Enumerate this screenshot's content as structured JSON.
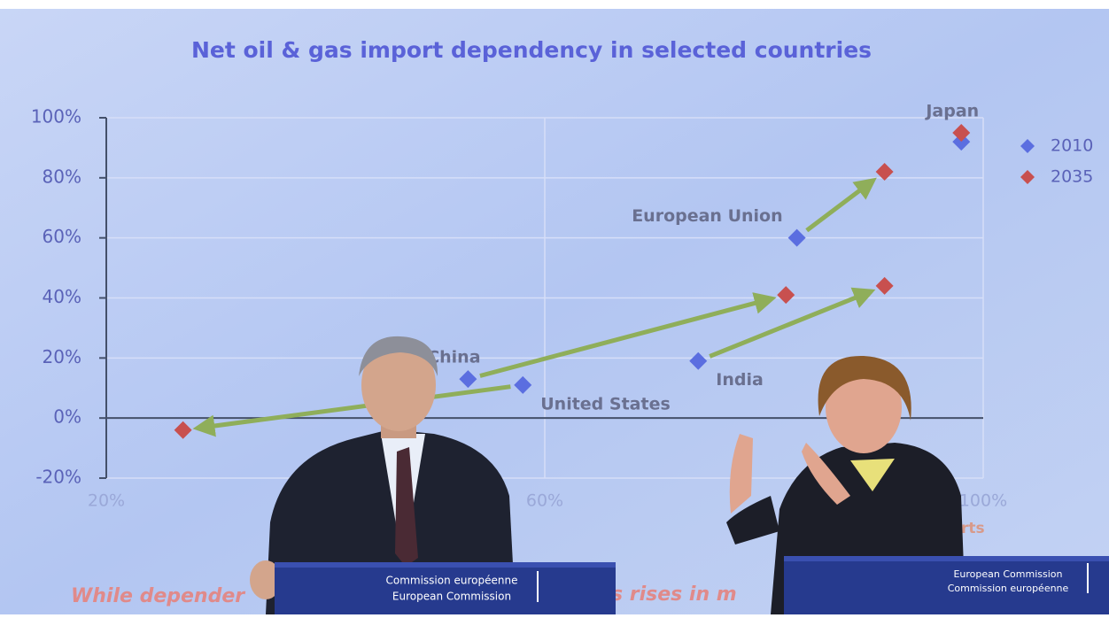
{
  "chart_data": {
    "type": "scatter",
    "title": "Net oil & gas import dependency in selected countries",
    "point_labels": [
      "Japan",
      "European Union",
      "China",
      "United States",
      "India"
    ],
    "series": [
      {
        "name": "2010",
        "color": "#5b6ee0",
        "x": [
          98,
          83,
          53,
          58,
          74
        ],
        "values": [
          92,
          60,
          13,
          11,
          19
        ]
      },
      {
        "name": "2035",
        "color": "#c8504f",
        "x": [
          98,
          91,
          82,
          27,
          91
        ],
        "values": [
          95,
          82,
          41,
          -4,
          44
        ]
      }
    ],
    "xlim": [
      20,
      100
    ],
    "ylim": [
      -20,
      100
    ],
    "xticks": [
      {
        "value": 20,
        "label": "20%"
      },
      {
        "value": 60,
        "label": "60%"
      },
      {
        "value": 100,
        "label": "100%"
      }
    ],
    "yticks": [
      {
        "value": 100,
        "label": "100%"
      },
      {
        "value": 80,
        "label": "80%"
      },
      {
        "value": 60,
        "label": "60%"
      },
      {
        "value": 40,
        "label": "40%"
      },
      {
        "value": 20,
        "label": "20%"
      },
      {
        "value": 0,
        "label": "0%"
      },
      {
        "value": -20,
        "label": "-20%"
      }
    ],
    "grid": true,
    "legend": "right"
  },
  "caption_fragments": [
    "While depender",
    "s rises in m",
    "rts"
  ],
  "podiums": [
    {
      "line1": "Commission européenne",
      "line2": "European Commission"
    },
    {
      "line1": "European Commission",
      "line2": "Commission européenne"
    }
  ]
}
